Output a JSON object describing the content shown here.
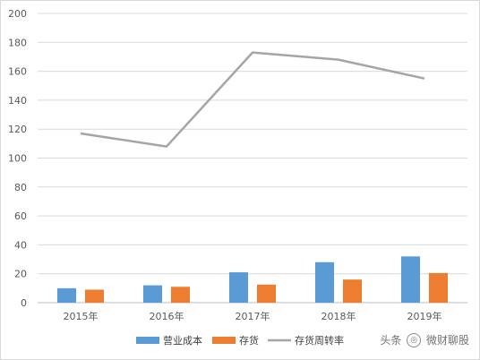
{
  "chart_data": {
    "type": "bar",
    "categories": [
      "2015年",
      "2016年",
      "2017年",
      "2018年",
      "2019年"
    ],
    "ylim": [
      0,
      200
    ],
    "yticks": [
      0,
      20,
      40,
      60,
      80,
      100,
      120,
      140,
      160,
      180,
      200
    ],
    "grid": true,
    "legend_position": "bottom",
    "series": [
      {
        "name": "营业成本",
        "type": "bar",
        "color": "#5b9bd5",
        "values": [
          10,
          12,
          21,
          28,
          32
        ]
      },
      {
        "name": "存货",
        "type": "bar",
        "color": "#ed7d31",
        "values": [
          9,
          11,
          12.5,
          16,
          20.5
        ]
      },
      {
        "name": "存货周转率",
        "type": "line",
        "color": "#a5a5a5",
        "values": [
          117,
          108,
          173,
          168,
          155
        ]
      }
    ]
  },
  "watermark": {
    "prefix": "头条",
    "suffix": "微财聊股"
  }
}
